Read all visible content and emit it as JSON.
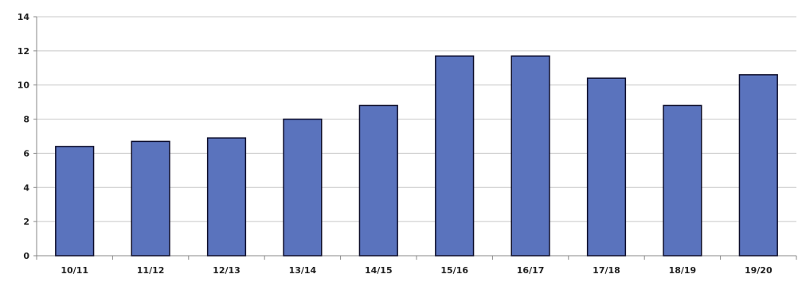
{
  "chart_data": {
    "type": "bar",
    "title": "",
    "xlabel": "",
    "ylabel": "",
    "categories": [
      "10/11",
      "11/12",
      "12/13",
      "13/14",
      "14/15",
      "15/16",
      "16/17",
      "17/18",
      "18/19",
      "19/20"
    ],
    "values": [
      6.4,
      6.7,
      6.9,
      8.0,
      8.8,
      11.7,
      11.7,
      10.4,
      8.8,
      10.6
    ],
    "ylim": [
      0,
      14
    ],
    "yticks": [
      "0",
      "2",
      "4",
      "6",
      "8",
      "10",
      "12",
      "14"
    ],
    "grid": true,
    "legend": "none",
    "colors": {
      "bar_fill": "#5a73bd",
      "bar_stroke": "#0d0d2a",
      "grid": "#c8c8c8",
      "axis": "#8a8a8a"
    }
  }
}
